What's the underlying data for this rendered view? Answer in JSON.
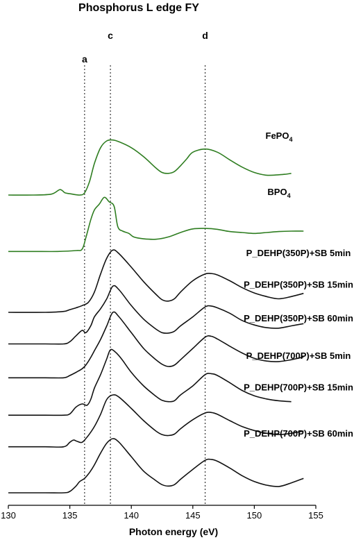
{
  "chart_data": {
    "type": "line",
    "title": "Phosphorus L edge FY",
    "xlabel": "Photon energy (eV)",
    "ylabel": "",
    "xlim": [
      130,
      155
    ],
    "xticks": [
      130,
      135,
      140,
      145,
      150,
      155
    ],
    "grid": false,
    "markers": [
      {
        "label": "a",
        "x": 136.2
      },
      {
        "label": "c",
        "x": 138.3
      },
      {
        "label": "d",
        "x": 146.0
      }
    ],
    "series": [
      {
        "name": "FePO4",
        "label_main": "FePO",
        "label_sub": "4",
        "color": "#2e7d20",
        "offset": 6.6,
        "x": [
          130,
          132,
          133.5,
          134.2,
          134.6,
          135,
          135.8,
          136.2,
          136.6,
          137,
          137.5,
          138,
          138.5,
          139,
          140,
          141,
          142,
          142.5,
          143,
          143.5,
          144,
          144.5,
          145,
          146,
          147,
          148,
          149,
          150,
          151,
          152,
          152.5,
          153
        ],
        "y": [
          0.0,
          0.0,
          0.02,
          0.12,
          0.05,
          0.03,
          0.0,
          0.05,
          0.3,
          0.7,
          1.05,
          1.2,
          1.22,
          1.18,
          1.05,
          0.85,
          0.6,
          0.5,
          0.48,
          0.52,
          0.65,
          0.8,
          0.95,
          1.02,
          0.95,
          0.78,
          0.62,
          0.5,
          0.44,
          0.45,
          0.46,
          0.48
        ]
      },
      {
        "name": "BPO4",
        "label_main": "BPO",
        "label_sub": "4",
        "color": "#2e7d20",
        "offset": 5.35,
        "x": [
          130,
          132,
          134,
          135.5,
          136,
          136.3,
          136.7,
          137,
          137.4,
          137.8,
          138.2,
          138.6,
          138.9,
          139.3,
          139.8,
          140.2,
          141,
          142,
          143,
          144,
          145,
          146,
          147,
          148,
          149,
          150,
          151,
          152,
          153,
          154
        ],
        "y": [
          0.0,
          0.0,
          0.0,
          0.02,
          0.05,
          0.3,
          0.7,
          0.92,
          1.05,
          1.2,
          1.1,
          1.0,
          0.55,
          0.45,
          0.4,
          0.32,
          0.28,
          0.27,
          0.32,
          0.42,
          0.5,
          0.51,
          0.49,
          0.44,
          0.42,
          0.4,
          0.42,
          0.44,
          0.45,
          0.45
        ]
      },
      {
        "name": "P_DEHP(350P)+SB 5min",
        "color": "#111111",
        "offset": 4.0,
        "x": [
          130,
          133,
          134.5,
          135,
          135.5,
          136,
          136.5,
          137,
          137.5,
          138,
          138.5,
          139,
          140,
          141,
          142,
          142.5,
          143,
          143.5,
          144,
          145,
          146,
          146.5,
          147,
          148,
          149,
          150,
          151,
          152,
          153,
          154
        ],
        "y": [
          0.0,
          0.0,
          0.02,
          0.06,
          0.1,
          0.15,
          0.22,
          0.45,
          0.85,
          1.2,
          1.38,
          1.3,
          1.0,
          0.68,
          0.4,
          0.28,
          0.25,
          0.3,
          0.45,
          0.7,
          0.85,
          0.86,
          0.83,
          0.7,
          0.55,
          0.43,
          0.35,
          0.3,
          0.35,
          0.42
        ]
      },
      {
        "name": "P_DEHP(350P)+SB 15min",
        "color": "#111111",
        "offset": 3.3,
        "x": [
          130,
          133,
          134.5,
          135,
          135.5,
          136,
          136.3,
          136.7,
          137,
          137.5,
          138,
          138.5,
          139,
          140,
          141,
          142,
          142.5,
          143,
          143.5,
          144,
          145,
          146,
          146.5,
          147,
          148,
          149,
          150,
          151,
          152,
          153,
          154
        ],
        "y": [
          0.0,
          0.0,
          0.0,
          0.05,
          0.18,
          0.3,
          0.25,
          0.4,
          0.6,
          0.78,
          1.0,
          1.28,
          1.2,
          0.85,
          0.55,
          0.33,
          0.25,
          0.24,
          0.28,
          0.4,
          0.6,
          0.82,
          0.84,
          0.8,
          0.68,
          0.52,
          0.42,
          0.36,
          0.35,
          0.4,
          0.45
        ]
      },
      {
        "name": "P_DEHP(350P)+SB 60min",
        "color": "#111111",
        "offset": 2.55,
        "x": [
          130,
          133,
          134.5,
          135,
          135.5,
          136,
          136.3,
          136.7,
          137,
          137.5,
          138,
          138.5,
          139,
          140,
          141,
          142,
          142.5,
          143,
          143.5,
          144,
          145,
          146,
          146.5,
          147,
          148,
          149,
          150,
          151,
          152,
          153,
          154
        ],
        "y": [
          0.0,
          0.0,
          0.0,
          0.05,
          0.12,
          0.2,
          0.28,
          0.45,
          0.6,
          0.85,
          1.15,
          1.45,
          1.35,
          1.0,
          0.65,
          0.4,
          0.3,
          0.25,
          0.28,
          0.4,
          0.65,
          0.9,
          0.92,
          0.86,
          0.7,
          0.55,
          0.43,
          0.37,
          0.36,
          0.4,
          0.46
        ]
      },
      {
        "name": "P_DEHP(700P)+SB 5min",
        "color": "#111111",
        "offset": 1.72,
        "x": [
          130,
          133,
          134.5,
          135,
          135.5,
          136,
          136.4,
          136.7,
          137,
          137.5,
          138,
          138.3,
          138.7,
          139.2,
          140,
          141,
          142,
          142.5,
          143,
          143.5,
          144,
          145,
          146,
          146.5,
          147,
          148,
          149,
          150,
          151,
          152,
          153
        ],
        "y": [
          0.0,
          0.0,
          0.0,
          0.03,
          0.18,
          0.25,
          0.22,
          0.35,
          0.6,
          0.9,
          1.25,
          1.45,
          1.4,
          1.25,
          0.95,
          0.65,
          0.42,
          0.33,
          0.3,
          0.32,
          0.45,
          0.65,
          0.9,
          0.92,
          0.88,
          0.72,
          0.55,
          0.43,
          0.36,
          0.32,
          0.3
        ]
      },
      {
        "name": "P_DEHP(700P)+SB 15min",
        "color": "#111111",
        "offset": 1.02,
        "x": [
          130,
          133,
          134.5,
          135,
          135.3,
          135.6,
          136,
          136.5,
          137,
          137.5,
          138,
          138.5,
          139,
          140,
          141,
          142,
          142.5,
          143,
          143.5,
          144,
          145,
          146,
          146.5,
          147,
          148,
          149,
          150,
          151,
          152,
          153,
          154
        ],
        "y": [
          0.0,
          0.0,
          0.0,
          0.1,
          0.15,
          0.12,
          0.1,
          0.25,
          0.45,
          0.72,
          1.05,
          1.15,
          1.1,
          0.85,
          0.58,
          0.35,
          0.27,
          0.25,
          0.28,
          0.4,
          0.6,
          0.75,
          0.76,
          0.72,
          0.58,
          0.45,
          0.36,
          0.3,
          0.27,
          0.3,
          0.35
        ]
      },
      {
        "name": "P_DEHP(700P)+SB 60min",
        "color": "#111111",
        "offset": 0.0,
        "x": [
          130,
          133,
          134.5,
          135,
          135.5,
          135.8,
          136.2,
          136.6,
          137,
          137.5,
          138,
          138.5,
          139,
          140,
          141,
          142,
          142.5,
          143,
          143.5,
          144,
          145,
          146,
          146.5,
          147,
          148,
          149,
          150,
          151,
          152,
          153,
          154
        ],
        "y": [
          0.0,
          0.0,
          0.0,
          0.03,
          0.15,
          0.25,
          0.32,
          0.45,
          0.62,
          0.88,
          1.1,
          1.2,
          1.12,
          0.8,
          0.48,
          0.27,
          0.18,
          0.15,
          0.18,
          0.3,
          0.52,
          0.72,
          0.74,
          0.7,
          0.55,
          0.38,
          0.25,
          0.17,
          0.14,
          0.22,
          0.32
        ]
      }
    ]
  }
}
